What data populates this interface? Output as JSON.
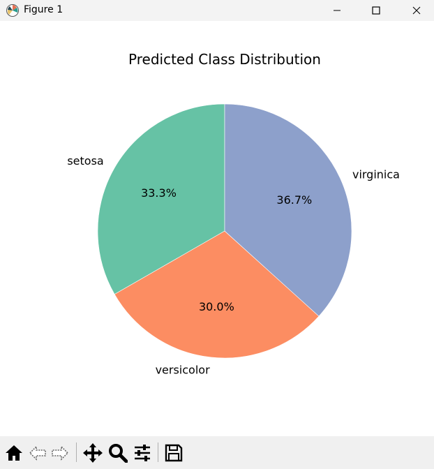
{
  "window": {
    "title": "Figure 1"
  },
  "toolbar": {
    "tools": [
      "home-icon",
      "back-icon",
      "forward-icon",
      "pan-icon",
      "zoom-icon",
      "configure-icon",
      "save-icon"
    ]
  },
  "chart_data": {
    "type": "pie",
    "title": "Predicted Class Distribution",
    "start_angle_deg": 90,
    "direction": "counterclockwise",
    "slices": [
      {
        "label": "setosa",
        "value": 33.3,
        "pct_label": "33.3%",
        "color": "#66c2a5"
      },
      {
        "label": "versicolor",
        "value": 30.0,
        "pct_label": "30.0%",
        "color": "#fc8d62"
      },
      {
        "label": "virginica",
        "value": 36.7,
        "pct_label": "36.7%",
        "color": "#8da0cb"
      }
    ]
  }
}
